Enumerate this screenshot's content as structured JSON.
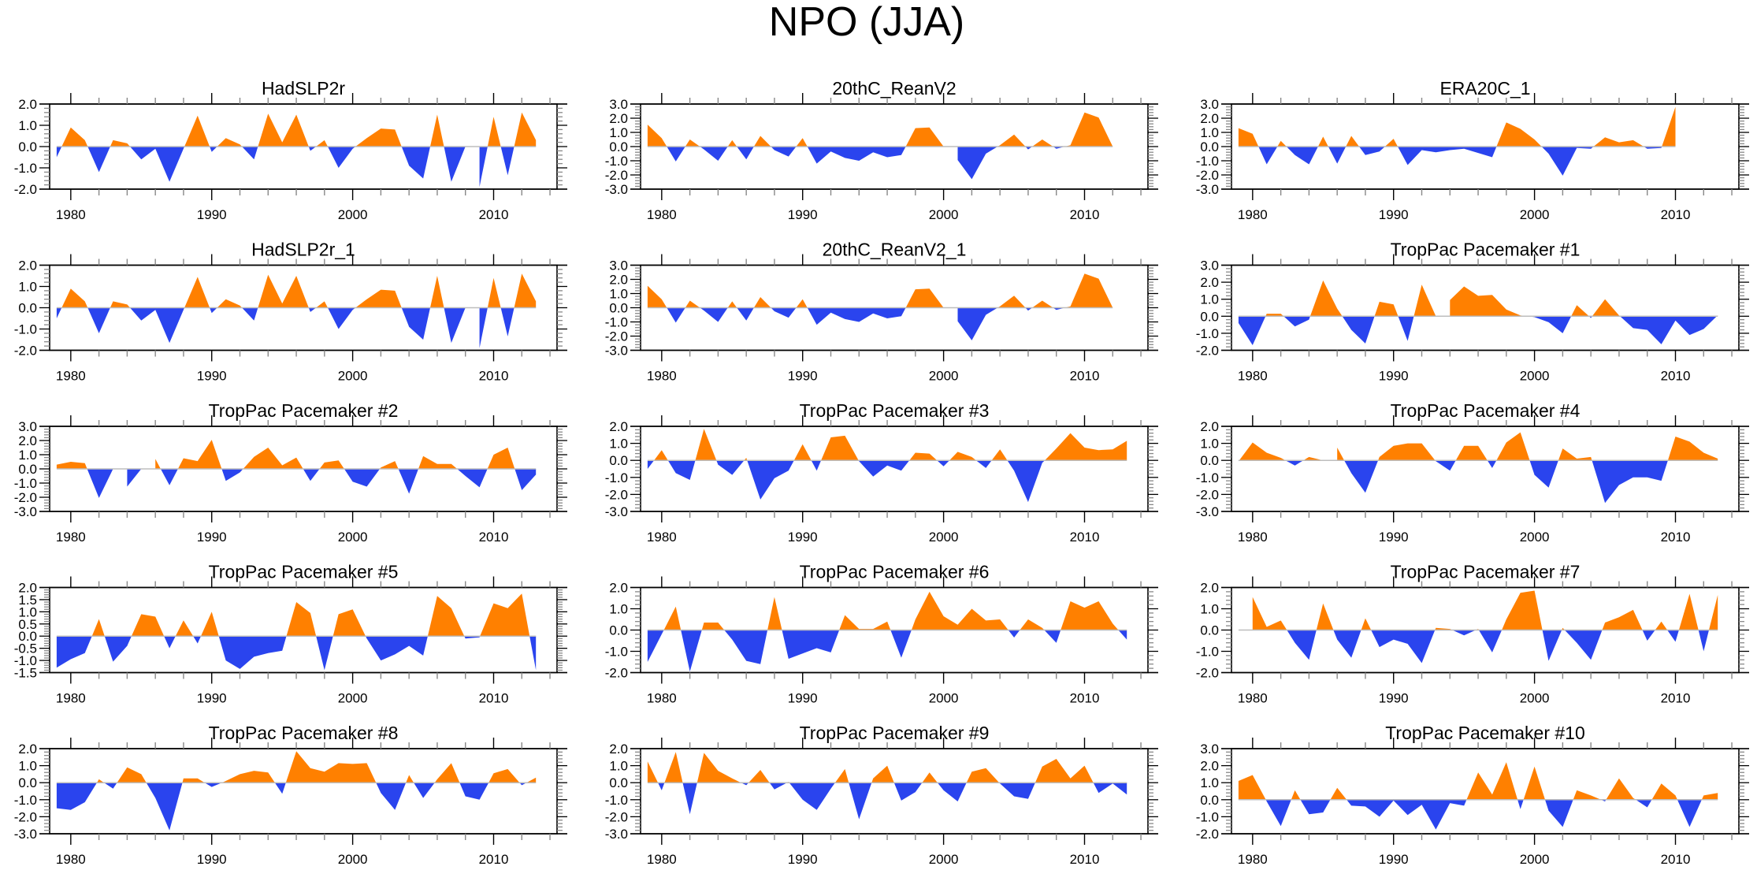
{
  "figure": {
    "title": "NPO (JJA)"
  },
  "colors": {
    "positive": "#ff8000",
    "negative": "#2a44ee",
    "zero_line": "#bdbdbd",
    "frame": "#000000"
  },
  "chart_data": [
    {
      "type": "area",
      "title": "HadSLP2r",
      "xlabel": "",
      "ylabel": "",
      "x_start": 1979,
      "xlim": [
        1978.5,
        2014.5
      ],
      "ylim": [
        -2.0,
        2.0
      ],
      "y_ticks": [
        "-2.0",
        "-1.0",
        "0.0",
        "1.0",
        "2.0"
      ],
      "x_ticks": [
        "1980",
        "1990",
        "2000",
        "2010"
      ],
      "values": [
        -0.5,
        0.9,
        0.3,
        -1.2,
        0.3,
        0.15,
        -0.6,
        -0.1,
        -1.65,
        -0.1,
        1.45,
        -0.25,
        0.4,
        0.1,
        -0.6,
        1.55,
        0.2,
        1.5,
        -0.2,
        0.3,
        -1.0,
        -0.1,
        0.4,
        0.85,
        0.8,
        -0.9,
        -1.5,
        1.5,
        -1.65,
        0.0,
        -1.9,
        1.4,
        -1.35,
        1.6,
        0.3
      ]
    },
    {
      "type": "area",
      "title": "20thC_ReanV2",
      "xlabel": "",
      "ylabel": "",
      "x_start": 1979,
      "xlim": [
        1978.5,
        2013.5
      ],
      "ylim": [
        -3.0,
        3.0
      ],
      "y_ticks": [
        "-3.0",
        "-2.0",
        "-1.0",
        "0.0",
        "1.0",
        "2.0",
        "3.0"
      ],
      "x_ticks": [
        "1980",
        "1990",
        "2000",
        "2010"
      ],
      "values": [
        1.55,
        0.6,
        -1.05,
        0.5,
        -0.2,
        -1.0,
        0.45,
        -0.9,
        0.75,
        -0.25,
        -0.7,
        0.6,
        -1.2,
        -0.35,
        -0.8,
        -1.0,
        -0.4,
        -0.75,
        -0.6,
        1.3,
        1.35,
        0.0,
        -0.95,
        -2.3,
        -0.5,
        0.1,
        0.85,
        -0.2,
        0.5,
        -0.15,
        0.1,
        2.4,
        2.05,
        0.0
      ]
    },
    {
      "type": "area",
      "title": "ERA20C_1",
      "xlabel": "",
      "ylabel": "",
      "x_start": 1979,
      "xlim": [
        1978.5,
        2011.5
      ],
      "ylim": [
        -3.0,
        3.0
      ],
      "y_ticks": [
        "-3.0",
        "-2.0",
        "-1.0",
        "0.0",
        "1.0",
        "2.0",
        "3.0"
      ],
      "x_ticks": [
        "1980",
        "1990",
        "2000",
        "2010"
      ],
      "values": [
        1.3,
        0.9,
        -1.25,
        0.4,
        -0.6,
        -1.25,
        0.7,
        -1.2,
        0.75,
        -0.6,
        -0.35,
        0.55,
        -1.3,
        -0.25,
        -0.4,
        -0.25,
        -0.15,
        -0.45,
        -0.75,
        1.7,
        1.25,
        0.5,
        -0.5,
        -2.05,
        -0.1,
        -0.15,
        0.65,
        0.3,
        0.45,
        -0.15,
        -0.1,
        2.8
      ]
    },
    {
      "type": "area",
      "title": "HadSLP2r_1",
      "xlabel": "",
      "ylabel": "",
      "x_start": 1979,
      "xlim": [
        1978.5,
        2014.5
      ],
      "ylim": [
        -2.0,
        2.0
      ],
      "y_ticks": [
        "-2.0",
        "-1.0",
        "0.0",
        "1.0",
        "2.0"
      ],
      "x_ticks": [
        "1980",
        "1990",
        "2000",
        "2010"
      ],
      "values": [
        -0.5,
        0.9,
        0.3,
        -1.2,
        0.3,
        0.15,
        -0.6,
        -0.1,
        -1.65,
        -0.1,
        1.45,
        -0.25,
        0.4,
        0.1,
        -0.6,
        1.55,
        0.2,
        1.5,
        -0.2,
        0.3,
        -1.0,
        -0.1,
        0.4,
        0.85,
        0.8,
        -0.9,
        -1.5,
        1.5,
        -1.65,
        0.0,
        -1.9,
        1.4,
        -1.35,
        1.6,
        0.3
      ]
    },
    {
      "type": "area",
      "title": "20thC_ReanV2_1",
      "xlabel": "",
      "ylabel": "",
      "x_start": 1979,
      "xlim": [
        1978.5,
        2013.5
      ],
      "ylim": [
        -3.0,
        3.0
      ],
      "y_ticks": [
        "-3.0",
        "-2.0",
        "-1.0",
        "0.0",
        "1.0",
        "2.0",
        "3.0"
      ],
      "x_ticks": [
        "1980",
        "1990",
        "2000",
        "2010"
      ],
      "values": [
        1.55,
        0.6,
        -1.05,
        0.5,
        -0.2,
        -1.0,
        0.45,
        -0.9,
        0.75,
        -0.25,
        -0.7,
        0.6,
        -1.2,
        -0.35,
        -0.8,
        -1.0,
        -0.4,
        -0.75,
        -0.6,
        1.3,
        1.35,
        0.0,
        -0.95,
        -2.3,
        -0.5,
        0.1,
        0.85,
        -0.2,
        0.5,
        -0.15,
        0.1,
        2.4,
        2.05,
        0.0
      ]
    },
    {
      "type": "area",
      "title": "TropPac Pacemaker #1",
      "xlabel": "",
      "ylabel": "",
      "x_start": 1979,
      "xlim": [
        1978.5,
        2014.5
      ],
      "ylim": [
        -2.0,
        3.0
      ],
      "y_ticks": [
        "-2.0",
        "-1.0",
        "0.0",
        "1.0",
        "2.0",
        "3.0"
      ],
      "x_ticks": [
        "1980",
        "1990",
        "2000",
        "2010"
      ],
      "values": [
        -0.4,
        -1.7,
        0.15,
        0.15,
        -0.6,
        -0.2,
        2.1,
        0.45,
        -0.8,
        -1.6,
        0.85,
        0.7,
        -1.45,
        1.85,
        0.0,
        0.95,
        1.75,
        1.2,
        1.25,
        0.4,
        0.05,
        -0.05,
        -0.35,
        -1.0,
        0.65,
        -0.1,
        1.0,
        0.05,
        -0.7,
        -0.8,
        -1.65,
        -0.25,
        -1.1,
        -0.75,
        0.05
      ]
    },
    {
      "type": "area",
      "title": "TropPac Pacemaker #2",
      "xlabel": "",
      "ylabel": "",
      "x_start": 1979,
      "xlim": [
        1978.5,
        2014.5
      ],
      "ylim": [
        -3.0,
        3.0
      ],
      "y_ticks": [
        "-3.0",
        "-2.0",
        "-1.0",
        "0.0",
        "1.0",
        "2.0",
        "3.0"
      ],
      "x_ticks": [
        "1980",
        "1990",
        "2000",
        "2010"
      ],
      "values": [
        0.3,
        0.5,
        0.4,
        -2.05,
        0.0,
        -1.25,
        0.0,
        0.7,
        -1.15,
        0.75,
        0.55,
        2.05,
        -0.85,
        -0.25,
        0.85,
        1.5,
        0.25,
        0.8,
        -0.85,
        0.45,
        0.6,
        -0.9,
        -1.25,
        0.1,
        0.55,
        -1.75,
        0.9,
        0.35,
        0.35,
        -0.5,
        -1.3,
        1.0,
        1.5,
        -1.5,
        -0.4
      ]
    },
    {
      "type": "area",
      "title": "TropPac Pacemaker #3",
      "xlabel": "",
      "ylabel": "",
      "x_start": 1979,
      "xlim": [
        1978.5,
        2014.5
      ],
      "ylim": [
        -3.0,
        2.0
      ],
      "y_ticks": [
        "-3.0",
        "-2.0",
        "-1.0",
        "0.0",
        "1.0",
        "2.0"
      ],
      "x_ticks": [
        "1980",
        "1990",
        "2000",
        "2010"
      ],
      "values": [
        -0.5,
        0.6,
        -0.75,
        -1.15,
        1.85,
        -0.25,
        -0.85,
        0.15,
        -2.3,
        -1.05,
        -0.6,
        0.95,
        -0.6,
        1.35,
        1.45,
        -0.05,
        -0.95,
        -0.3,
        -0.6,
        0.45,
        0.4,
        -0.35,
        0.5,
        0.2,
        -0.45,
        0.65,
        -0.6,
        -2.45,
        -0.15,
        0.7,
        1.6,
        0.75,
        0.6,
        0.65,
        1.15
      ]
    },
    {
      "type": "area",
      "title": "TropPac Pacemaker #4",
      "xlabel": "",
      "ylabel": "",
      "x_start": 1979,
      "xlim": [
        1978.5,
        2014.5
      ],
      "ylim": [
        -3.0,
        2.0
      ],
      "y_ticks": [
        "-3.0",
        "-2.0",
        "-1.0",
        "0.0",
        "1.0",
        "2.0"
      ],
      "x_ticks": [
        "1980",
        "1990",
        "2000",
        "2010"
      ],
      "values": [
        -0.05,
        1.05,
        0.45,
        0.15,
        -0.3,
        0.2,
        0.0,
        0.75,
        -0.75,
        -1.9,
        0.2,
        0.85,
        1.0,
        1.0,
        -0.05,
        -0.6,
        0.85,
        0.85,
        -0.45,
        1.05,
        1.65,
        -0.85,
        -1.6,
        0.7,
        0.1,
        0.2,
        -2.5,
        -1.45,
        -1.0,
        -1.0,
        -1.2,
        1.4,
        1.1,
        0.45,
        0.1
      ]
    },
    {
      "type": "area",
      "title": "TropPac Pacemaker #5",
      "xlabel": "",
      "ylabel": "",
      "x_start": 1979,
      "xlim": [
        1978.5,
        2014.5
      ],
      "ylim": [
        -1.5,
        2.0
      ],
      "y_ticks": [
        "-1.5",
        "-1.0",
        "-0.5",
        "0.0",
        "0.5",
        "1.0",
        "1.5",
        "2.0"
      ],
      "x_ticks": [
        "1980",
        "1990",
        "2000",
        "2010"
      ],
      "values": [
        -1.3,
        -0.95,
        -0.7,
        0.7,
        -1.05,
        -0.4,
        0.9,
        0.8,
        -0.5,
        0.65,
        -0.3,
        1.0,
        -1.0,
        -1.35,
        -0.85,
        -0.7,
        -0.6,
        1.4,
        0.95,
        -1.4,
        0.9,
        1.1,
        -0.1,
        -1.0,
        -0.75,
        -0.4,
        -0.8,
        1.65,
        1.15,
        -0.1,
        -0.05,
        1.35,
        1.15,
        1.75,
        -1.4
      ]
    },
    {
      "type": "area",
      "title": "TropPac Pacemaker #6",
      "xlabel": "",
      "ylabel": "",
      "x_start": 1979,
      "xlim": [
        1978.5,
        2014.5
      ],
      "ylim": [
        -2.0,
        2.0
      ],
      "y_ticks": [
        "-2.0",
        "-1.0",
        "0.0",
        "1.0",
        "2.0"
      ],
      "x_ticks": [
        "1980",
        "1990",
        "2000",
        "2010"
      ],
      "values": [
        -1.5,
        -0.2,
        1.1,
        -1.95,
        0.35,
        0.35,
        -0.45,
        -1.45,
        -1.6,
        1.55,
        -1.35,
        -1.1,
        -0.85,
        -1.05,
        0.7,
        0.05,
        0.05,
        0.4,
        -1.3,
        0.5,
        1.8,
        0.65,
        0.25,
        1.0,
        0.45,
        0.5,
        -0.35,
        0.5,
        0.1,
        -0.6,
        1.35,
        1.05,
        1.35,
        0.3,
        -0.45
      ]
    },
    {
      "type": "area",
      "title": "TropPac Pacemaker #7",
      "xlabel": "",
      "ylabel": "",
      "x_start": 1979,
      "xlim": [
        1978.5,
        2014.5
      ],
      "ylim": [
        -2.0,
        2.0
      ],
      "y_ticks": [
        "-2.0",
        "-1.0",
        "0.0",
        "1.0",
        "2.0"
      ],
      "x_ticks": [
        "1980",
        "1990",
        "2000",
        "2010"
      ],
      "values": [
        0.0,
        1.55,
        0.15,
        0.45,
        -0.6,
        -1.4,
        1.25,
        -0.45,
        -1.3,
        0.55,
        -0.8,
        -0.45,
        -0.65,
        -1.55,
        0.1,
        0.05,
        -0.25,
        0.05,
        -1.05,
        0.5,
        1.75,
        1.85,
        -1.45,
        0.1,
        -0.6,
        -1.4,
        0.35,
        0.6,
        0.95,
        -0.5,
        0.4,
        -0.55,
        1.7,
        -1.0,
        1.65
      ]
    },
    {
      "type": "area",
      "title": "TropPac Pacemaker #8",
      "xlabel": "",
      "ylabel": "",
      "x_start": 1979,
      "xlim": [
        1978.5,
        2014.5
      ],
      "ylim": [
        -3.0,
        2.0
      ],
      "y_ticks": [
        "-3.0",
        "-2.0",
        "-1.0",
        "0.0",
        "1.0",
        "2.0"
      ],
      "x_ticks": [
        "1980",
        "1990",
        "2000",
        "2010"
      ],
      "values": [
        -1.5,
        -1.6,
        -1.15,
        0.2,
        -0.35,
        0.9,
        0.5,
        -0.9,
        -2.8,
        0.25,
        0.25,
        -0.25,
        0.1,
        0.5,
        0.7,
        0.6,
        -0.65,
        1.85,
        0.85,
        0.65,
        1.15,
        1.1,
        1.15,
        -0.6,
        -1.6,
        0.45,
        -0.9,
        0.2,
        1.15,
        -0.8,
        -1.0,
        0.55,
        0.8,
        -0.15,
        0.3
      ]
    },
    {
      "type": "area",
      "title": "TropPac Pacemaker #9",
      "xlabel": "",
      "ylabel": "",
      "x_start": 1979,
      "xlim": [
        1978.5,
        2014.5
      ],
      "ylim": [
        -3.0,
        2.0
      ],
      "y_ticks": [
        "-3.0",
        "-2.0",
        "-1.0",
        "0.0",
        "1.0",
        "2.0"
      ],
      "x_ticks": [
        "1980",
        "1990",
        "2000",
        "2010"
      ],
      "values": [
        1.25,
        -0.45,
        1.8,
        -1.85,
        1.75,
        0.7,
        0.25,
        -0.15,
        0.75,
        -0.4,
        0.05,
        -1.0,
        -1.6,
        -0.35,
        0.8,
        -2.15,
        0.25,
        1.0,
        -1.05,
        -0.55,
        0.6,
        -0.45,
        -1.1,
        0.65,
        0.85,
        -0.05,
        -0.8,
        -0.95,
        0.95,
        1.4,
        0.25,
        1.0,
        -0.6,
        -0.05,
        -0.7
      ]
    },
    {
      "type": "area",
      "title": "TropPac Pacemaker #10",
      "xlabel": "",
      "ylabel": "",
      "x_start": 1979,
      "xlim": [
        1978.5,
        2014.5
      ],
      "ylim": [
        -2.0,
        3.0
      ],
      "y_ticks": [
        "-2.0",
        "-1.0",
        "0.0",
        "1.0",
        "2.0",
        "3.0"
      ],
      "x_ticks": [
        "1980",
        "1990",
        "2000",
        "2010"
      ],
      "values": [
        1.1,
        1.45,
        -0.1,
        -1.55,
        0.55,
        -0.85,
        -0.75,
        0.7,
        -0.35,
        -0.4,
        -1.0,
        -0.05,
        -0.9,
        -0.3,
        -1.75,
        -0.2,
        -0.35,
        1.6,
        0.3,
        2.2,
        -0.55,
        1.95,
        -0.65,
        -1.6,
        0.55,
        0.25,
        -0.1,
        1.25,
        0.1,
        -0.45,
        0.95,
        0.25,
        -1.6,
        0.25,
        0.4
      ]
    }
  ]
}
